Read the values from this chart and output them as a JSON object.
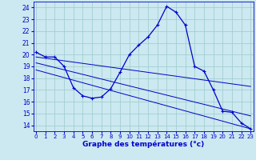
{
  "xlabel": "Graphe des températures (°c)",
  "bg_color": "#cce8f0",
  "line_color": "#0000cc",
  "grid_color": "#99cccc",
  "x_ticks": [
    0,
    1,
    2,
    3,
    4,
    5,
    6,
    7,
    8,
    9,
    10,
    11,
    12,
    13,
    14,
    15,
    16,
    17,
    18,
    19,
    20,
    21,
    22,
    23
  ],
  "y_ticks": [
    14,
    15,
    16,
    17,
    18,
    19,
    20,
    21,
    22,
    23,
    24
  ],
  "ylim": [
    13.5,
    24.5
  ],
  "xlim": [
    -0.3,
    23.3
  ],
  "main_curve_x": [
    0,
    1,
    2,
    3,
    4,
    5,
    6,
    7,
    8,
    9,
    10,
    11,
    12,
    13,
    14,
    15,
    16,
    17,
    18,
    19,
    20,
    21,
    22,
    23
  ],
  "main_curve_y": [
    20.2,
    19.8,
    19.8,
    19.0,
    17.2,
    16.5,
    16.3,
    16.4,
    17.1,
    18.5,
    20.0,
    20.8,
    21.5,
    22.5,
    24.1,
    23.6,
    22.5,
    19.0,
    18.6,
    17.0,
    15.2,
    15.1,
    14.2,
    13.7
  ],
  "line1_x": [
    0,
    23
  ],
  "line1_y": [
    19.8,
    17.3
  ],
  "line2_x": [
    0,
    23
  ],
  "line2_y": [
    19.3,
    14.8
  ],
  "line3_x": [
    0,
    23
  ],
  "line3_y": [
    18.7,
    13.7
  ]
}
